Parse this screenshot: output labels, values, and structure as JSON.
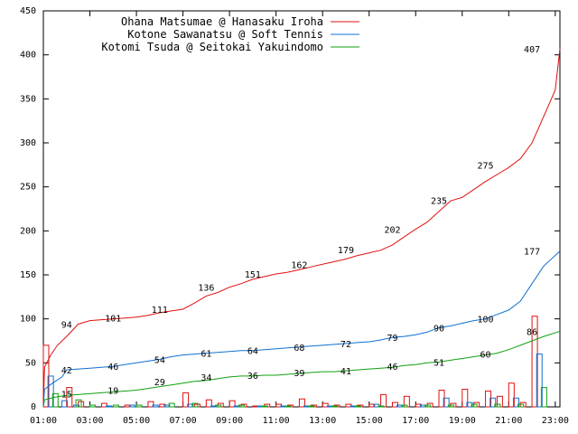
{
  "chart_data": {
    "type": "line",
    "title": "",
    "xlabel": "",
    "ylabel": "",
    "xlim": [
      1,
      23.2
    ],
    "ylim": [
      0,
      450
    ],
    "yticks": [
      0,
      50,
      100,
      150,
      200,
      250,
      300,
      350,
      400,
      450
    ],
    "xticks": [
      "01:00",
      "03:00",
      "05:00",
      "07:00",
      "09:00",
      "11:00",
      "13:00",
      "15:00",
      "17:00",
      "19:00",
      "21:00",
      "23:00"
    ],
    "grid": false,
    "legend_position": "top",
    "series": [
      {
        "name": "Ohana Matsumae @ Hanasaku Iroha",
        "color": "#e01010",
        "cumulative": [
          [
            1.0,
            0
          ],
          [
            1.05,
            45
          ],
          [
            1.3,
            58
          ],
          [
            1.6,
            70
          ],
          [
            2.0,
            80
          ],
          [
            2.5,
            94
          ],
          [
            3.0,
            98
          ],
          [
            3.5,
            99
          ],
          [
            4.0,
            100
          ],
          [
            4.5,
            101
          ],
          [
            5.0,
            102
          ],
          [
            5.5,
            104
          ],
          [
            6.0,
            107
          ],
          [
            6.5,
            109
          ],
          [
            7.0,
            111
          ],
          [
            7.5,
            118
          ],
          [
            8.0,
            126
          ],
          [
            8.5,
            130
          ],
          [
            9.0,
            136
          ],
          [
            9.5,
            140
          ],
          [
            10.0,
            145
          ],
          [
            10.5,
            148
          ],
          [
            11.0,
            151
          ],
          [
            11.5,
            153
          ],
          [
            12.0,
            156
          ],
          [
            12.5,
            159
          ],
          [
            13.0,
            162
          ],
          [
            13.5,
            165
          ],
          [
            14.0,
            168
          ],
          [
            14.5,
            172
          ],
          [
            15.0,
            175
          ],
          [
            15.5,
            178
          ],
          [
            16.0,
            184
          ],
          [
            16.5,
            193
          ],
          [
            17.0,
            202
          ],
          [
            17.5,
            210
          ],
          [
            18.0,
            222
          ],
          [
            18.5,
            234
          ],
          [
            19.0,
            238
          ],
          [
            19.5,
            247
          ],
          [
            20.0,
            256
          ],
          [
            20.5,
            264
          ],
          [
            21.0,
            272
          ],
          [
            21.5,
            282
          ],
          [
            22.0,
            300
          ],
          [
            22.5,
            330
          ],
          [
            23.0,
            360
          ],
          [
            23.2,
            407
          ]
        ],
        "labels": [
          {
            "x": 2.0,
            "y": 94,
            "text": "94"
          },
          {
            "x": 4.0,
            "y": 101,
            "text": "101"
          },
          {
            "x": 6.0,
            "y": 111,
            "text": "111"
          },
          {
            "x": 8.0,
            "y": 136,
            "text": "136"
          },
          {
            "x": 10.0,
            "y": 151,
            "text": "151"
          },
          {
            "x": 12.0,
            "y": 162,
            "text": "162"
          },
          {
            "x": 14.0,
            "y": 179,
            "text": "179"
          },
          {
            "x": 16.0,
            "y": 202,
            "text": "202"
          },
          {
            "x": 18.0,
            "y": 235,
            "text": "235"
          },
          {
            "x": 20.0,
            "y": 275,
            "text": "275"
          },
          {
            "x": 22.0,
            "y": 407,
            "text": "407"
          }
        ],
        "hourly": [
          [
            1.0,
            70
          ],
          [
            2.0,
            22
          ],
          [
            2.5,
            6
          ],
          [
            3.5,
            4
          ],
          [
            4.5,
            2
          ],
          [
            5.5,
            6
          ],
          [
            6.0,
            3
          ],
          [
            7.0,
            16
          ],
          [
            7.5,
            3
          ],
          [
            8.0,
            8
          ],
          [
            8.5,
            4
          ],
          [
            9.0,
            7
          ],
          [
            9.5,
            3
          ],
          [
            10.0,
            1
          ],
          [
            10.5,
            3
          ],
          [
            11.0,
            3
          ],
          [
            11.5,
            2
          ],
          [
            12.0,
            9
          ],
          [
            12.5,
            2
          ],
          [
            13.0,
            4
          ],
          [
            13.5,
            2
          ],
          [
            14.0,
            3
          ],
          [
            14.5,
            2
          ],
          [
            15.0,
            3
          ],
          [
            15.5,
            14
          ],
          [
            16.0,
            5
          ],
          [
            16.5,
            12
          ],
          [
            17.0,
            3
          ],
          [
            17.5,
            4
          ],
          [
            18.0,
            19
          ],
          [
            18.5,
            4
          ],
          [
            19.0,
            20
          ],
          [
            19.5,
            5
          ],
          [
            20.0,
            18
          ],
          [
            20.5,
            12
          ],
          [
            21.0,
            27
          ],
          [
            21.5,
            5
          ],
          [
            22.0,
            103
          ]
        ]
      },
      {
        "name": "Kotone Sawanatsu @ Soft Tennis",
        "color": "#1070d0",
        "cumulative": [
          [
            1.0,
            0
          ],
          [
            1.05,
            20
          ],
          [
            1.4,
            27
          ],
          [
            1.8,
            34
          ],
          [
            2.0,
            42
          ],
          [
            2.5,
            43
          ],
          [
            3.0,
            44
          ],
          [
            3.5,
            45
          ],
          [
            4.0,
            46
          ],
          [
            4.5,
            48
          ],
          [
            5.0,
            50
          ],
          [
            5.5,
            52
          ],
          [
            6.0,
            54
          ],
          [
            6.5,
            57
          ],
          [
            7.0,
            59
          ],
          [
            7.5,
            60
          ],
          [
            8.0,
            61
          ],
          [
            8.5,
            62
          ],
          [
            9.0,
            63
          ],
          [
            9.5,
            64
          ],
          [
            10.0,
            64
          ],
          [
            10.5,
            65
          ],
          [
            11.0,
            66
          ],
          [
            11.5,
            67
          ],
          [
            12.0,
            68
          ],
          [
            12.5,
            69
          ],
          [
            13.0,
            70
          ],
          [
            13.5,
            71
          ],
          [
            14.0,
            72
          ],
          [
            14.5,
            73
          ],
          [
            15.0,
            74
          ],
          [
            15.5,
            76
          ],
          [
            16.0,
            79
          ],
          [
            16.5,
            80
          ],
          [
            17.0,
            82
          ],
          [
            17.5,
            85
          ],
          [
            18.0,
            90
          ],
          [
            18.5,
            92
          ],
          [
            19.0,
            95
          ],
          [
            19.5,
            98
          ],
          [
            20.0,
            100
          ],
          [
            20.5,
            105
          ],
          [
            21.0,
            110
          ],
          [
            21.5,
            120
          ],
          [
            22.0,
            140
          ],
          [
            22.5,
            160
          ],
          [
            23.2,
            177
          ]
        ],
        "labels": [
          {
            "x": 2.0,
            "y": 42,
            "text": "42"
          },
          {
            "x": 4.0,
            "y": 46,
            "text": "46"
          },
          {
            "x": 6.0,
            "y": 54,
            "text": "54"
          },
          {
            "x": 8.0,
            "y": 61,
            "text": "61"
          },
          {
            "x": 10.0,
            "y": 64,
            "text": "64"
          },
          {
            "x": 12.0,
            "y": 68,
            "text": "68"
          },
          {
            "x": 14.0,
            "y": 72,
            "text": "72"
          },
          {
            "x": 16.0,
            "y": 79,
            "text": "79"
          },
          {
            "x": 18.0,
            "y": 90,
            "text": "90"
          },
          {
            "x": 20.0,
            "y": 100,
            "text": "100"
          },
          {
            "x": 22.0,
            "y": 177,
            "text": "177"
          }
        ],
        "hourly": [
          [
            1.2,
            35
          ],
          [
            1.8,
            7
          ],
          [
            2.3,
            2
          ],
          [
            3.7,
            1
          ],
          [
            4.7,
            2
          ],
          [
            5.7,
            2
          ],
          [
            6.2,
            2
          ],
          [
            7.2,
            3
          ],
          [
            8.2,
            1
          ],
          [
            9.2,
            1
          ],
          [
            10.2,
            1
          ],
          [
            11.2,
            1
          ],
          [
            12.2,
            1
          ],
          [
            13.2,
            1
          ],
          [
            14.2,
            1
          ],
          [
            15.2,
            3
          ],
          [
            16.2,
            2
          ],
          [
            17.2,
            2
          ],
          [
            18.2,
            10
          ],
          [
            19.2,
            5
          ],
          [
            20.2,
            10
          ],
          [
            21.2,
            10
          ],
          [
            22.2,
            60
          ]
        ]
      },
      {
        "name": "Kotomi Tsuda @ Seitokai Yakuindomo",
        "color": "#10a010",
        "cumulative": [
          [
            1.0,
            0
          ],
          [
            1.05,
            8
          ],
          [
            1.5,
            11
          ],
          [
            2.0,
            13
          ],
          [
            2.5,
            14
          ],
          [
            3.0,
            15
          ],
          [
            3.5,
            16
          ],
          [
            4.0,
            17
          ],
          [
            4.5,
            18
          ],
          [
            5.0,
            19
          ],
          [
            5.5,
            21
          ],
          [
            6.0,
            23
          ],
          [
            6.5,
            25
          ],
          [
            7.0,
            27
          ],
          [
            7.5,
            29
          ],
          [
            8.0,
            30
          ],
          [
            8.5,
            32
          ],
          [
            9.0,
            34
          ],
          [
            9.5,
            35
          ],
          [
            10.0,
            35
          ],
          [
            10.5,
            36
          ],
          [
            11.0,
            36
          ],
          [
            11.5,
            37
          ],
          [
            12.0,
            38
          ],
          [
            12.5,
            39
          ],
          [
            13.0,
            40
          ],
          [
            13.5,
            40
          ],
          [
            14.0,
            41
          ],
          [
            14.5,
            42
          ],
          [
            15.0,
            43
          ],
          [
            15.5,
            44
          ],
          [
            16.0,
            45
          ],
          [
            16.5,
            47
          ],
          [
            17.0,
            48
          ],
          [
            17.5,
            50
          ],
          [
            18.0,
            51
          ],
          [
            18.5,
            53
          ],
          [
            19.0,
            55
          ],
          [
            19.5,
            57
          ],
          [
            20.0,
            59
          ],
          [
            20.5,
            61
          ],
          [
            21.0,
            65
          ],
          [
            21.5,
            70
          ],
          [
            22.0,
            75
          ],
          [
            22.5,
            80
          ],
          [
            23.2,
            86
          ]
        ],
        "labels": [
          {
            "x": 2.0,
            "y": 15,
            "text": "15"
          },
          {
            "x": 4.0,
            "y": 19,
            "text": "19"
          },
          {
            "x": 6.0,
            "y": 29,
            "text": "29"
          },
          {
            "x": 8.0,
            "y": 34,
            "text": "34"
          },
          {
            "x": 10.0,
            "y": 36,
            "text": "36"
          },
          {
            "x": 12.0,
            "y": 39,
            "text": "39"
          },
          {
            "x": 14.0,
            "y": 41,
            "text": "41"
          },
          {
            "x": 16.0,
            "y": 46,
            "text": "46"
          },
          {
            "x": 18.0,
            "y": 51,
            "text": "51"
          },
          {
            "x": 20.0,
            "y": 60,
            "text": "60"
          },
          {
            "x": 22.0,
            "y": 86,
            "text": "86"
          }
        ],
        "hourly": [
          [
            1.4,
            15
          ],
          [
            2.4,
            8
          ],
          [
            3.0,
            2
          ],
          [
            4.0,
            2
          ],
          [
            5.0,
            2
          ],
          [
            6.4,
            4
          ],
          [
            7.4,
            4
          ],
          [
            8.4,
            2
          ],
          [
            9.4,
            2
          ],
          [
            10.4,
            1
          ],
          [
            11.4,
            1
          ],
          [
            12.4,
            1
          ],
          [
            13.4,
            1
          ],
          [
            14.4,
            1
          ],
          [
            15.4,
            1
          ],
          [
            16.4,
            2
          ],
          [
            17.4,
            2
          ],
          [
            18.4,
            2
          ],
          [
            19.4,
            3
          ],
          [
            20.4,
            3
          ],
          [
            21.4,
            3
          ],
          [
            22.4,
            22
          ]
        ]
      }
    ]
  }
}
